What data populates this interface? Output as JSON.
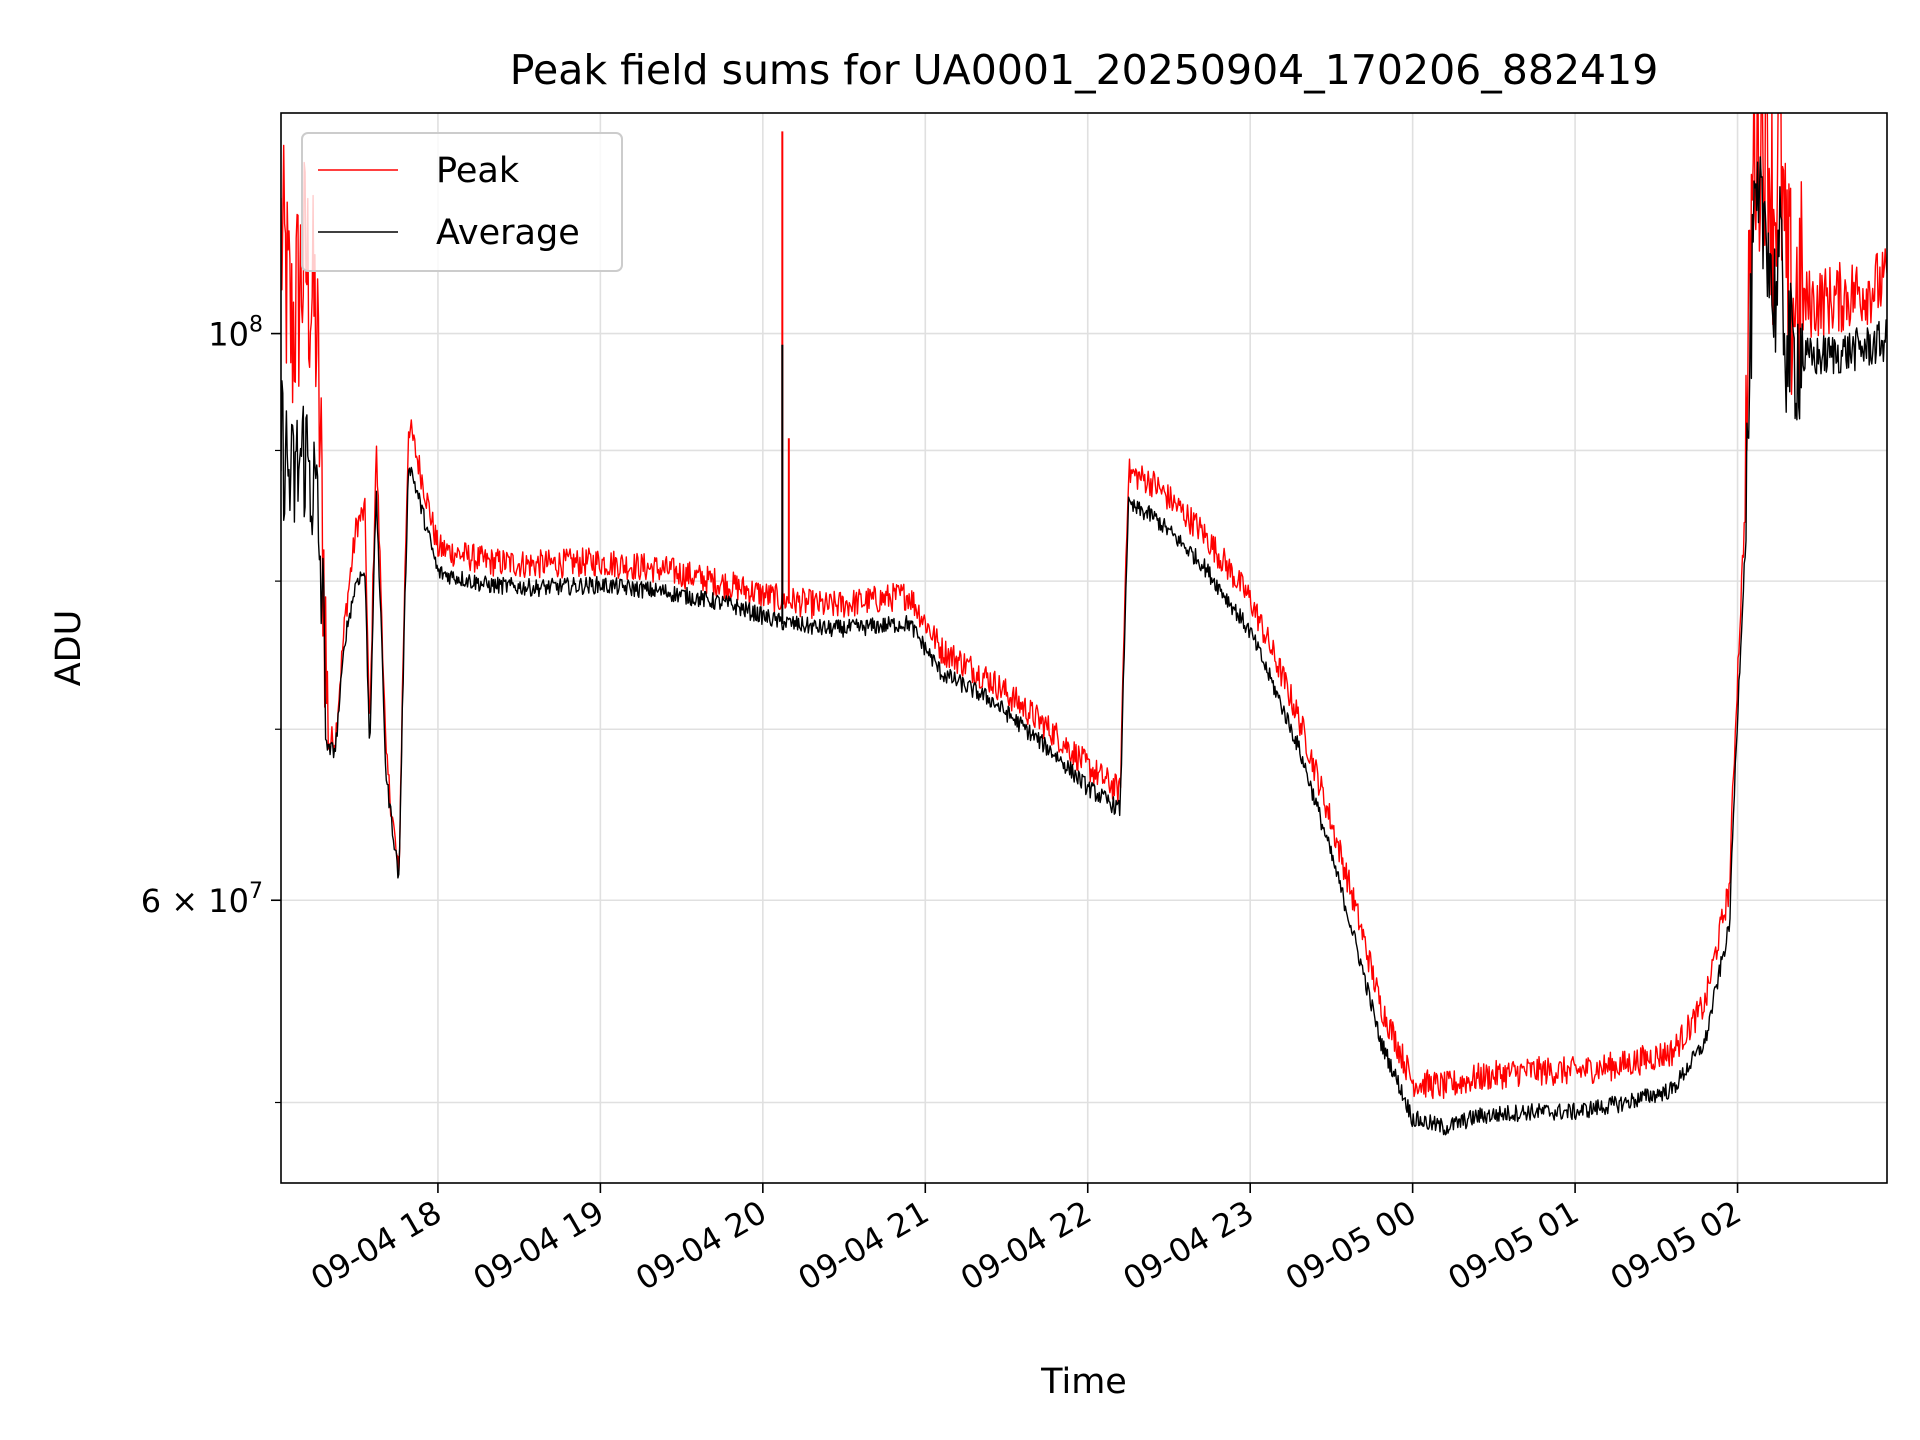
{
  "chart_data": {
    "type": "line",
    "title": "Peak field sums for UA0001_20250904_170206_882419",
    "xlabel": "Time",
    "ylabel": "ADU",
    "yscale": "log",
    "ylim": [
      46500000,
      122000000
    ],
    "xlim_hours_from_0904_0000": [
      17.034,
      26.92
    ],
    "grid": true,
    "legend_position": "upper-left",
    "x_ticks": [
      {
        "h": 18,
        "label": "09-04 18"
      },
      {
        "h": 19,
        "label": "09-04 19"
      },
      {
        "h": 20,
        "label": "09-04 20"
      },
      {
        "h": 21,
        "label": "09-04 21"
      },
      {
        "h": 22,
        "label": "09-04 22"
      },
      {
        "h": 23,
        "label": "09-04 23"
      },
      {
        "h": 24,
        "label": "09-05 00"
      },
      {
        "h": 25,
        "label": "09-05 01"
      },
      {
        "h": 26,
        "label": "09-05 02"
      }
    ],
    "y_major_ticks": [
      {
        "value": 60000000,
        "label": "6 × 10",
        "exp": "7"
      },
      {
        "value": 100000000,
        "label": "10",
        "exp": "8"
      }
    ],
    "y_minor_ticks": [
      50000000,
      70000000,
      80000000,
      90000000
    ],
    "series": [
      {
        "name": "Peak",
        "color": "#ff0000",
        "x_hours": [
          17.034,
          17.1,
          17.18,
          17.25,
          17.3,
          17.32,
          17.37,
          17.43,
          17.5,
          17.55,
          17.58,
          17.62,
          17.68,
          17.76,
          17.82,
          18.0,
          18.3,
          18.6,
          19.0,
          19.4,
          19.8,
          20.1,
          20.4,
          20.6,
          20.9,
          21.1,
          21.4,
          21.8,
          22.0,
          22.2,
          22.25,
          22.4,
          22.7,
          23.0,
          23.3,
          23.6,
          23.8,
          24.0,
          24.2,
          24.4,
          24.7,
          25.0,
          25.3,
          25.6,
          25.8,
          25.95,
          26.05,
          26.1,
          26.18,
          26.22,
          26.26,
          26.3,
          26.35,
          26.4,
          26.6,
          26.8,
          26.92
        ],
        "y_values": [
          107000000,
          98000000,
          105000000,
          99000000,
          78000000,
          69000000,
          69300000,
          77300000,
          84000000,
          85000000,
          69000000,
          90000000,
          68000000,
          61000000,
          92000000,
          82200000,
          81200000,
          81000000,
          81200000,
          80600000,
          79500000,
          78500000,
          78000000,
          78300000,
          78800000,
          75000000,
          73000000,
          69500000,
          67500000,
          66000000,
          88000000,
          87200000,
          83500000,
          78500000,
          70500000,
          61000000,
          54500000,
          50800000,
          50600000,
          51000000,
          51300000,
          51300000,
          51600000,
          52200000,
          54500000,
          60500000,
          86000000,
          117000000,
          119000000,
          109000000,
          116000000,
          102000000,
          101000000,
          102000000,
          102500000,
          103500000,
          104000000
        ]
      },
      {
        "name": "Average",
        "color": "#000000",
        "x_hours": [
          17.034,
          17.1,
          17.18,
          17.25,
          17.3,
          17.32,
          17.37,
          17.43,
          17.5,
          17.55,
          17.58,
          17.62,
          17.68,
          17.76,
          17.82,
          18.0,
          18.3,
          18.6,
          19.0,
          19.4,
          19.8,
          20.1,
          20.4,
          20.6,
          20.9,
          21.1,
          21.4,
          21.8,
          22.0,
          22.2,
          22.25,
          22.4,
          22.7,
          23.0,
          23.3,
          23.6,
          23.8,
          24.0,
          24.2,
          24.4,
          24.7,
          25.0,
          25.3,
          25.6,
          25.8,
          25.95,
          26.05,
          26.1,
          26.18,
          26.22,
          26.26,
          26.3,
          26.35,
          26.4,
          26.6,
          26.8,
          26.92
        ],
        "y_values": [
          90000000,
          86000000,
          89000000,
          85000000,
          75000000,
          68500000,
          68700000,
          76000000,
          80000000,
          80500000,
          68500000,
          86500000,
          67000000,
          61000000,
          89000000,
          80500000,
          79600000,
          79400000,
          79600000,
          79100000,
          78200000,
          77000000,
          76500000,
          76600000,
          76900000,
          73500000,
          71800000,
          68300000,
          66300000,
          65000000,
          85500000,
          84700000,
          81200000,
          76300000,
          68700000,
          59200000,
          52800000,
          49200000,
          48800000,
          49300000,
          49500000,
          49500000,
          49900000,
          50500000,
          52700000,
          58500000,
          83000000,
          108000000,
          110000000,
          101000000,
          106000000,
          97500000,
          96700000,
          97300000,
          97800000,
          98400000,
          99000000
        ]
      }
    ],
    "spikes": [
      {
        "series": "Peak",
        "x_hours": 20.12,
        "y_value": 120000000
      },
      {
        "series": "Average",
        "x_hours": 20.12,
        "y_value": 99000000
      },
      {
        "series": "Peak",
        "x_hours": 20.16,
        "y_value": 91000000
      }
    ]
  }
}
